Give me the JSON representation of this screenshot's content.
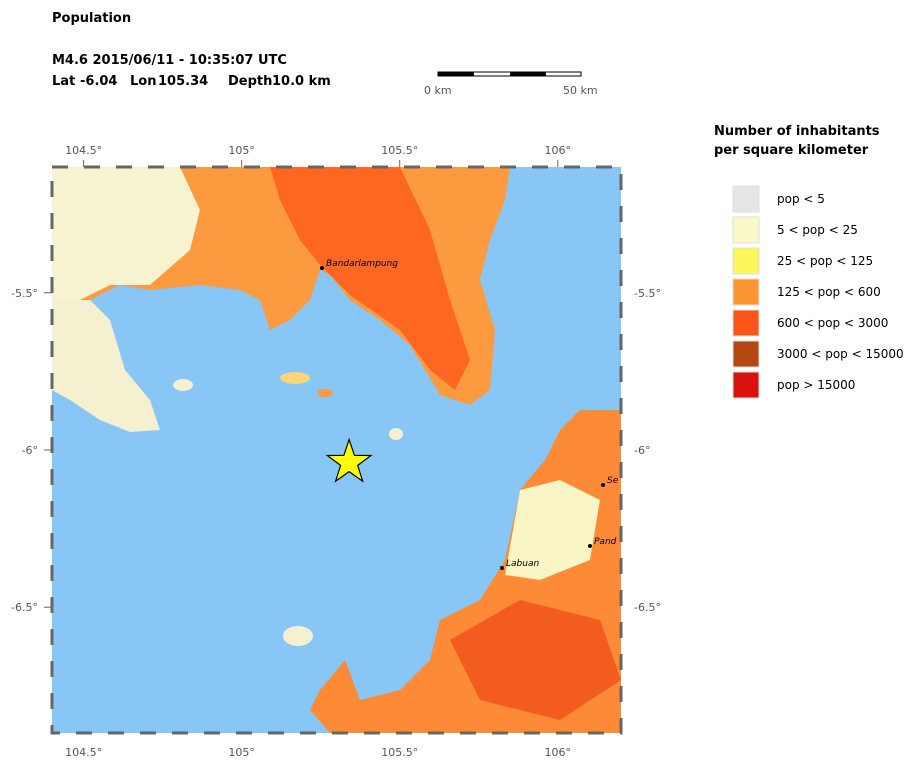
{
  "header": {
    "title": "Population",
    "event": "M4.6  2015/06/11 - 10:35:07 UTC",
    "lat_label": "Lat",
    "lat": -6.04,
    "lon_label": "Lon",
    "lon": 105.34,
    "depth_label": "Depth",
    "depth": "10.0 km"
  },
  "scale_bar": {
    "start": "0 km",
    "end": "50 km"
  },
  "map": {
    "xlim": [
      104.4,
      106.2
    ],
    "ylim": [
      -5.1,
      -6.9
    ],
    "xticks": [
      {
        "value": 104.5,
        "label": "104.5°"
      },
      {
        "value": 105,
        "label": "105°"
      },
      {
        "value": 105.5,
        "label": "105.5°"
      },
      {
        "value": 106,
        "label": "106°"
      }
    ],
    "yticks": [
      {
        "value": -5.5,
        "label": "-5.5°"
      },
      {
        "value": -6,
        "label": "-6°"
      },
      {
        "value": -6.5,
        "label": "-6.5°"
      }
    ],
    "cities": [
      "Bandarlampung",
      "Labuan",
      "Pand",
      "Se"
    ]
  },
  "legend": {
    "title": [
      "Number of inhabitants",
      "per square kilometer"
    ],
    "items": [
      {
        "label": "pop < 5",
        "color": "#e6e6e6"
      },
      {
        "label": "5 < pop < 25",
        "color": "#fbf8c8"
      },
      {
        "label": "25 < pop < 125",
        "color": "#fcf85c"
      },
      {
        "label": "125 < pop < 600",
        "color": "#fc9633"
      },
      {
        "label": "600 < pop < 3000",
        "color": "#fc5616"
      },
      {
        "label": "3000 < pop < 15000",
        "color": "#b54812"
      },
      {
        "label": "pop > 15000",
        "color": "#d9120c"
      }
    ]
  }
}
